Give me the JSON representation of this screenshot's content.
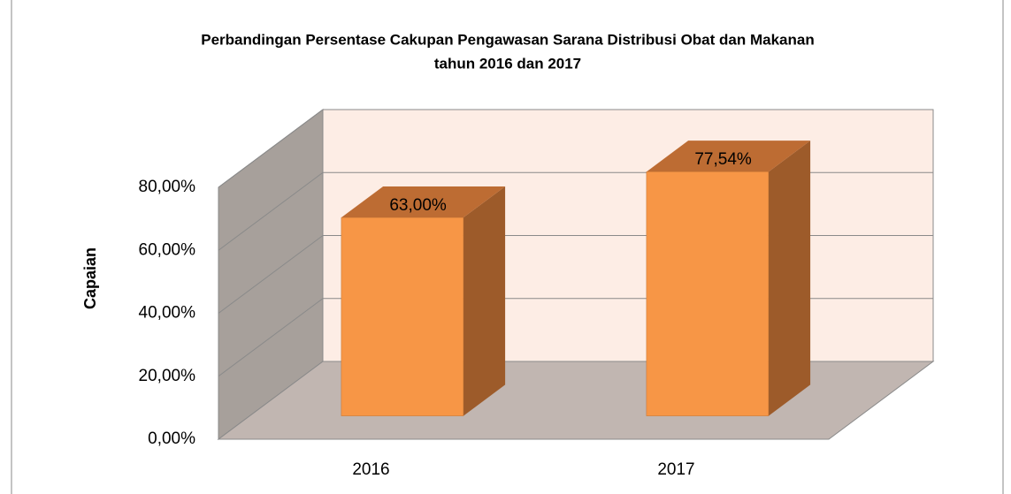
{
  "chart_data": {
    "type": "bar3d",
    "title": "Perbandingan Persentase Cakupan Pengawasan Sarana Distribusi Obat dan Makanan",
    "subtitle": "tahun 2016 dan 2017",
    "y_label": "Capaian",
    "categories": [
      "2016",
      "2017"
    ],
    "values": [
      63,
      77.54
    ],
    "value_labels": [
      "63,00%",
      "77,54%"
    ],
    "color": "#f79646",
    "ylim": [
      0,
      80
    ],
    "yticks": [
      {
        "value": 0,
        "label": "0,00%"
      },
      {
        "value": 20,
        "label": "20,00%"
      },
      {
        "value": 40,
        "label": "40,00%"
      },
      {
        "value": 60,
        "label": "60,00%"
      },
      {
        "value": 80,
        "label": "80,00%"
      }
    ],
    "grid": true
  }
}
